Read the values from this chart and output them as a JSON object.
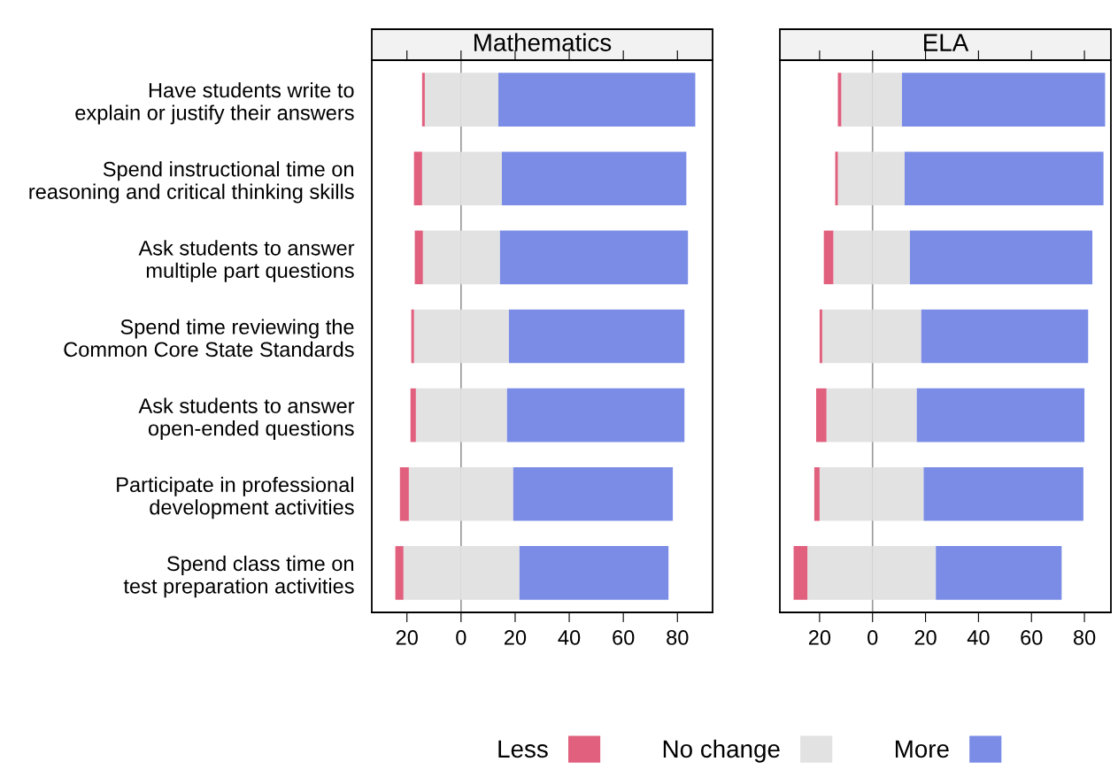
{
  "chart_data": [
    {
      "type": "bar",
      "title": "Mathematics",
      "orientation": "horizontal",
      "stacked": true,
      "legend": "bottom",
      "categories": [
        "Have students write to\nexplain or justify their answers",
        "Spend instructional time on\nreasoning and critical thinking skills",
        "Ask students to answer\nmultiple part questions",
        "Spend time reviewing the\nCommon Core State Standards",
        "Ask students to answer\nopen-ended questions",
        "Participate in professional\ndevelopment activities",
        "Spend class time on\ntest preparation activities"
      ],
      "series": [
        {
          "color": "#e2e2e2",
          "values": [
            -13.4,
            -14.4,
            -14.1,
            -17.4,
            -16.7,
            -19.3,
            -21.3
          ]
        },
        {
          "name": "Less",
          "color": "#e0607e",
          "values": [
            -1.0,
            -3.0,
            -3.0,
            -1.0,
            -2.0,
            -3.3,
            -3.0
          ]
        },
        {
          "name": "No change",
          "color": "#e2e2e2",
          "values": [
            13.8,
            15.1,
            14.4,
            17.7,
            17.0,
            19.3,
            21.6
          ]
        },
        {
          "name": "More",
          "color": "#7a8ce6",
          "values": [
            72.8,
            68.2,
            69.5,
            64.9,
            65.6,
            59.0,
            55.1
          ]
        }
      ],
      "ref_lines": [
        {
          "axis": "x",
          "value": 0,
          "color": "#999999"
        }
      ],
      "xlim": [
        -33,
        93
      ],
      "xticks": [
        {
          "value": -20,
          "label": "20"
        },
        0,
        20,
        40,
        60,
        80
      ]
    },
    {
      "type": "bar",
      "title": "ELA",
      "orientation": "horizontal",
      "stacked": true,
      "tick_labels": "x",
      "categories": [
        null,
        null,
        null,
        null,
        null,
        null,
        null
      ],
      "series": [
        {
          "color": "#e2e2e2",
          "values": [
            -11.8,
            -13.1,
            -14.8,
            -19.0,
            -17.4,
            -20.0,
            -24.6
          ]
        },
        {
          "color": "#e0607e",
          "values": [
            -1.3,
            -1.0,
            -3.6,
            -1.0,
            -3.9,
            -2.0,
            -5.2
          ]
        },
        {
          "color": "#e2e2e2",
          "values": [
            11.1,
            12.1,
            14.1,
            18.4,
            16.7,
            19.3,
            23.9
          ]
        },
        {
          "color": "#7a8ce6",
          "values": [
            76.7,
            75.1,
            68.9,
            63.0,
            63.3,
            60.3,
            47.5
          ]
        }
      ],
      "ref_lines": [
        {
          "axis": "x",
          "value": 0,
          "color": "#999999"
        }
      ],
      "xlim": [
        -35,
        90
      ],
      "xticks": [
        {
          "value": -20,
          "label": "20"
        },
        0,
        20,
        40,
        60,
        80
      ]
    }
  ]
}
